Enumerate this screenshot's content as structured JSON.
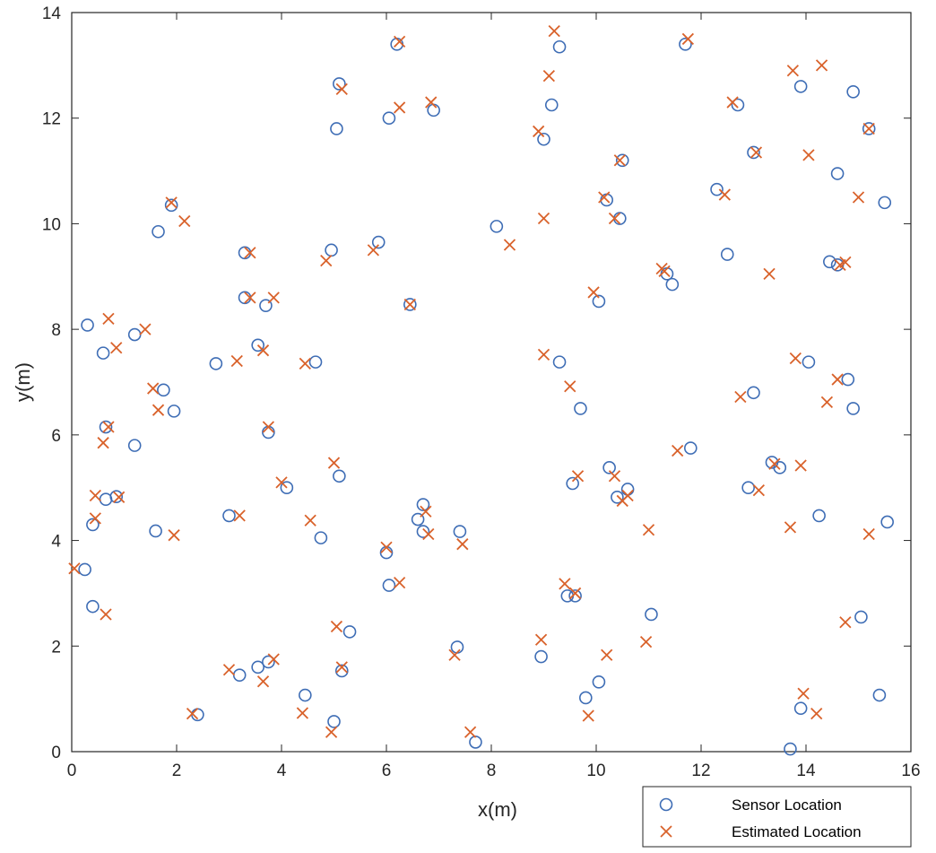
{
  "colors": {
    "sensor": "#3E6DB5",
    "estimated": "#D9622B",
    "axis": "#262626"
  },
  "chart_data": {
    "type": "scatter",
    "xlabel": "x(m)",
    "ylabel": "y(m)",
    "xlim": [
      0,
      16
    ],
    "ylim": [
      0,
      14
    ],
    "xticks": [
      "0",
      "2",
      "4",
      "6",
      "8",
      "10",
      "12",
      "14",
      "16"
    ],
    "yticks": [
      "0",
      "2",
      "4",
      "6",
      "8",
      "10",
      "12",
      "14"
    ],
    "grid": false,
    "legend": {
      "position": "bottom-right outside",
      "entries": [
        "Sensor Location",
        "Estimated Location"
      ]
    },
    "series": [
      {
        "name": "Sensor Location",
        "marker": "circle",
        "x": [
          5.1,
          6.2,
          9.3,
          11.7,
          13.9,
          14.9,
          5.05,
          6.05,
          6.9,
          9.15,
          12.7,
          9.0,
          15.2,
          10.5,
          13.0,
          14.6,
          12.3,
          15.5,
          1.9,
          1.65,
          10.2,
          8.1,
          10.45,
          3.3,
          4.95,
          5.85,
          14.45,
          14.6,
          12.5,
          11.35,
          11.45,
          3.3,
          3.7,
          6.45,
          10.05,
          0.3,
          0.6,
          1.2,
          3.55,
          2.75,
          4.65,
          9.3,
          14.05,
          1.75,
          14.8,
          13.0,
          1.95,
          9.7,
          14.9,
          0.65,
          3.75,
          1.2,
          11.8,
          10.25,
          13.35,
          13.5,
          4.1,
          5.1,
          9.55,
          12.9,
          10.6,
          10.4,
          0.65,
          0.85,
          6.7,
          3.0,
          14.25,
          6.6,
          15.55,
          0.4,
          1.6,
          6.7,
          7.4,
          4.75,
          6.0,
          0.25,
          6.05,
          9.45,
          9.6,
          0.4,
          11.05,
          15.05,
          5.3,
          7.35,
          3.55,
          3.75,
          8.95,
          5.15,
          3.2,
          10.05,
          4.45,
          9.8,
          13.9,
          15.4,
          2.4,
          5.0,
          7.7,
          13.7
        ],
        "y": [
          12.65,
          13.4,
          13.35,
          13.4,
          12.6,
          12.5,
          11.8,
          12.0,
          12.15,
          12.25,
          12.25,
          11.6,
          11.8,
          11.2,
          11.35,
          10.95,
          10.65,
          10.4,
          10.35,
          9.85,
          10.45,
          9.95,
          10.1,
          9.45,
          9.5,
          9.65,
          9.28,
          9.22,
          9.42,
          9.05,
          8.85,
          8.6,
          8.45,
          8.47,
          8.53,
          8.08,
          7.55,
          7.9,
          7.7,
          7.35,
          7.38,
          7.38,
          7.38,
          6.85,
          7.05,
          6.8,
          6.45,
          6.5,
          6.5,
          6.15,
          6.05,
          5.8,
          5.75,
          5.38,
          5.48,
          5.38,
          5.0,
          5.22,
          5.08,
          5.0,
          4.97,
          4.82,
          4.78,
          4.83,
          4.68,
          4.47,
          4.47,
          4.4,
          4.35,
          4.3,
          4.18,
          4.17,
          4.17,
          4.05,
          3.77,
          3.45,
          3.15,
          2.95,
          2.95,
          2.75,
          2.6,
          2.55,
          2.27,
          1.98,
          1.6,
          1.7,
          1.8,
          1.53,
          1.45,
          1.32,
          1.07,
          1.02,
          0.82,
          1.07,
          0.7,
          0.57,
          0.18,
          0.05
        ]
      },
      {
        "name": "Estimated Location",
        "marker": "x",
        "x": [
          6.25,
          9.2,
          11.75,
          13.75,
          14.3,
          5.15,
          6.25,
          6.85,
          9.1,
          12.6,
          8.9,
          15.2,
          10.45,
          13.05,
          14.05,
          12.45,
          15.0,
          1.9,
          2.15,
          10.15,
          9.0,
          10.35,
          8.35,
          3.4,
          4.85,
          5.75,
          14.75,
          14.65,
          13.3,
          11.25,
          11.3,
          3.4,
          3.85,
          6.45,
          9.95,
          0.7,
          0.85,
          1.4,
          3.65,
          3.15,
          4.45,
          9.0,
          9.5,
          13.8,
          14.6,
          12.75,
          14.4,
          1.55,
          1.65,
          0.6,
          0.7,
          3.75,
          11.55,
          13.4,
          13.9,
          4.0,
          5.0,
          9.65,
          13.1,
          10.35,
          10.6,
          10.5,
          0.45,
          0.45,
          0.9,
          6.75,
          3.2,
          4.55,
          6.8,
          1.95,
          7.45,
          13.7,
          15.2,
          6.0,
          0.05,
          6.25,
          9.4,
          9.6,
          0.65,
          14.75,
          11.0,
          10.95,
          8.95,
          7.3,
          10.2,
          5.05,
          5.15,
          3.0,
          3.65,
          3.85,
          4.4,
          4.95,
          9.85,
          13.95,
          14.2,
          2.3,
          7.6
        ],
        "y": [
          13.45,
          13.65,
          13.5,
          12.9,
          13.0,
          12.55,
          12.2,
          12.3,
          12.8,
          12.3,
          11.75,
          11.8,
          11.2,
          11.35,
          11.3,
          10.55,
          10.5,
          10.4,
          10.05,
          10.5,
          10.1,
          10.1,
          9.6,
          9.45,
          9.3,
          9.5,
          9.27,
          9.22,
          9.05,
          9.15,
          9.1,
          8.6,
          8.6,
          8.47,
          8.7,
          8.2,
          7.65,
          8.0,
          7.6,
          7.4,
          7.35,
          7.52,
          6.92,
          7.45,
          7.05,
          6.72,
          6.62,
          6.88,
          6.47,
          5.85,
          6.15,
          6.15,
          5.7,
          5.45,
          5.42,
          5.1,
          5.47,
          5.22,
          4.95,
          5.22,
          4.85,
          4.75,
          4.85,
          4.42,
          4.82,
          4.55,
          4.47,
          4.38,
          4.12,
          4.1,
          3.93,
          4.25,
          4.12,
          3.87,
          3.47,
          3.2,
          3.18,
          3.0,
          2.6,
          2.45,
          4.2,
          2.08,
          2.12,
          1.83,
          1.83,
          2.37,
          1.6,
          1.55,
          1.33,
          1.75,
          0.73,
          0.37,
          0.68,
          1.1,
          0.72,
          0.72,
          0.37
        ]
      }
    ]
  }
}
